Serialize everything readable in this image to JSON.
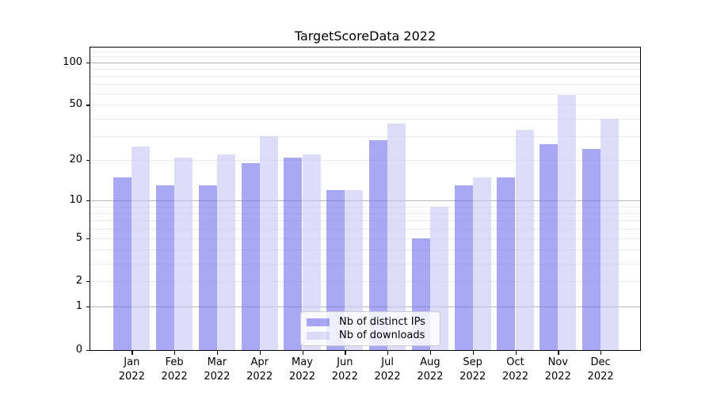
{
  "chart_data": {
    "type": "bar",
    "title": "TargetScoreData 2022",
    "categories": [
      "Jan",
      "Feb",
      "Mar",
      "Apr",
      "May",
      "Jun",
      "Jul",
      "Aug",
      "Sep",
      "Oct",
      "Nov",
      "Dec"
    ],
    "category_year": "2022",
    "series": [
      {
        "name": "Nb of distinct IPs",
        "color": "rgba(115,115,235,0.62)",
        "values": [
          15,
          13,
          13,
          19,
          21,
          12,
          28,
          5,
          13,
          15,
          26,
          24
        ]
      },
      {
        "name": "Nb of downloads",
        "color": "rgba(200,200,243,0.62)",
        "values": [
          25,
          21,
          22,
          30,
          22,
          12,
          37,
          9,
          15,
          33,
          59,
          40
        ]
      }
    ],
    "yscale": "log1p",
    "ylim": [
      0,
      128
    ],
    "yticks": [
      100,
      50,
      20,
      10,
      5,
      2,
      1,
      0
    ],
    "ytick_labels": [
      "100",
      "50",
      "20",
      "10",
      "5",
      "2",
      "1",
      "0"
    ],
    "grid_major_values": [
      1,
      10,
      100
    ],
    "grid_minor_values": [
      2,
      3,
      4,
      5,
      6,
      7,
      8,
      9,
      20,
      30,
      40,
      50,
      60,
      70,
      80,
      90,
      110,
      120
    ],
    "grid": true,
    "legend_position": "bottom-center"
  },
  "colors": {
    "background": "#ffffff",
    "axis": "#000000",
    "grid_major": "#b4b4b4",
    "grid_minor": "#e9e9e9",
    "bar_ips": "rgba(115,115,235,0.62)",
    "bar_downloads": "rgba(200,200,243,0.62)",
    "legend_border": "#cccccc"
  }
}
